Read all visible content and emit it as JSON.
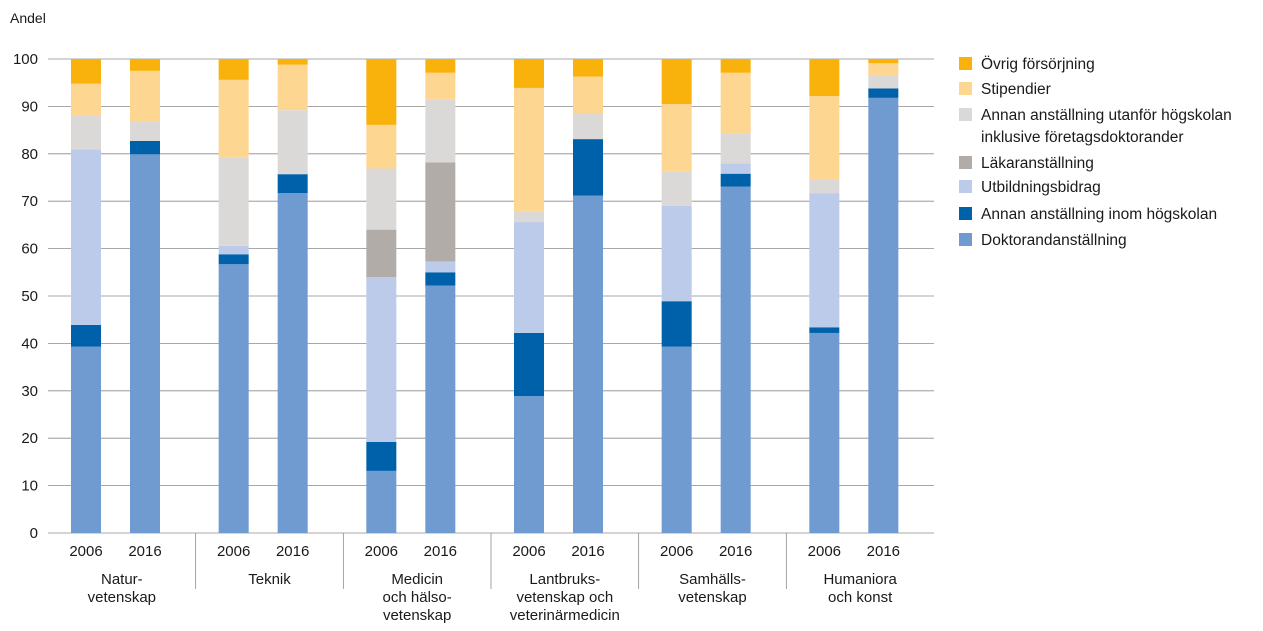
{
  "chart_data": {
    "type": "bar",
    "stacked": true,
    "ylabel": "Andel",
    "ylim": [
      0,
      100
    ],
    "yticks": [
      0,
      10,
      20,
      30,
      40,
      50,
      60,
      70,
      80,
      90,
      100
    ],
    "grid": true,
    "legend_position": "right",
    "groups": [
      {
        "label_lines": [
          "Natur-",
          "vetenskap"
        ],
        "years": [
          "2006",
          "2016"
        ]
      },
      {
        "label_lines": [
          "Teknik"
        ],
        "years": [
          "2006",
          "2016"
        ]
      },
      {
        "label_lines": [
          "Medicin",
          "och hälso-",
          "vetenskap"
        ],
        "years": [
          "2006",
          "2016"
        ]
      },
      {
        "label_lines": [
          "Lantbruks-",
          "vetenskap och",
          "veterinärmedicin"
        ],
        "years": [
          "2006",
          "2016"
        ]
      },
      {
        "label_lines": [
          "Samhälls-",
          "vetenskap"
        ],
        "years": [
          "2006",
          "2016"
        ]
      },
      {
        "label_lines": [
          "Humaniora",
          "och konst"
        ],
        "years": [
          "2006",
          "2016"
        ]
      }
    ],
    "series": [
      {
        "name": "Doktorandanställning",
        "color": "#6f9bd1",
        "values": [
          39.3,
          79.9,
          56.7,
          71.7,
          13.1,
          52.2,
          28.9,
          71.2,
          39.3,
          73.1,
          42.2,
          91.8
        ]
      },
      {
        "name": "Annan anställning inom högskolan",
        "color": "#0061ab",
        "values": [
          4.6,
          2.8,
          2.1,
          4.0,
          6.1,
          2.8,
          13.3,
          11.9,
          9.6,
          2.7,
          1.2,
          2.0
        ]
      },
      {
        "name": "Utbildningsbidrag",
        "color": "#bccbea",
        "values": [
          37.0,
          0.0,
          1.8,
          0.0,
          34.8,
          2.3,
          23.4,
          0.0,
          20.1,
          2.2,
          28.3,
          0.0
        ]
      },
      {
        "name": "Läkaranställning",
        "color": "#b2aca9",
        "values": [
          0.0,
          0.0,
          0.0,
          0.0,
          10.0,
          20.9,
          0.0,
          0.0,
          0.0,
          0.0,
          0.0,
          0.0
        ]
      },
      {
        "name": "Annan anställning utanför högskolan inklusive företagsdoktorander",
        "color": "#dbd8d8",
        "values": [
          7.2,
          4.2,
          18.6,
          13.5,
          12.9,
          13.3,
          2.2,
          5.4,
          7.3,
          6.3,
          2.9,
          2.6
        ]
      },
      {
        "name": "Stipendier",
        "color": "#fdd691",
        "values": [
          6.7,
          10.6,
          16.4,
          9.6,
          9.2,
          5.6,
          26.1,
          7.8,
          14.2,
          12.8,
          17.6,
          2.7
        ]
      },
      {
        "name": "Övrig försörjning",
        "color": "#f9b20c",
        "values": [
          5.2,
          2.5,
          4.4,
          1.2,
          13.9,
          2.9,
          6.1,
          3.7,
          9.5,
          2.9,
          7.8,
          0.9
        ]
      }
    ],
    "legend": [
      {
        "lines": [
          "Övrig försörjning"
        ],
        "color": "#f9b20c"
      },
      {
        "lines": [
          "Stipendier"
        ],
        "color": "#fdd691"
      },
      {
        "lines": [
          "Annan anställning utanför högskolan",
          "inklusive företagsdoktorander"
        ],
        "color": "#dbd8d8"
      },
      {
        "lines": [
          "Läkaranställning"
        ],
        "color": "#b2aca9"
      },
      {
        "lines": [
          "Utbildningsbidrag"
        ],
        "color": "#bccbea"
      },
      {
        "lines": [
          "Annan anställning inom högskolan"
        ],
        "color": "#0061ab"
      },
      {
        "lines": [
          "Doktorandanställning"
        ],
        "color": "#6f9bd1"
      }
    ]
  }
}
